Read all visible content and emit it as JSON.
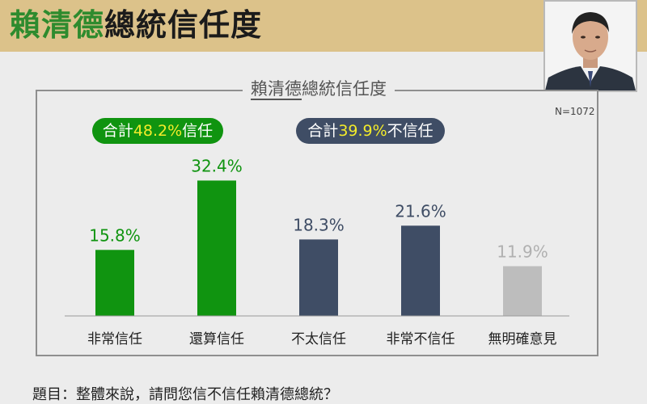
{
  "header": {
    "title_name": "賴清德",
    "title_rest": "總統信任度"
  },
  "chart_data": {
    "type": "bar",
    "title": "賴清德總統信任度",
    "title_underlined": "賴清德",
    "title_rest": "總統信任度",
    "sample_size": "N=1072",
    "categories": [
      "非常信任",
      "還算信任",
      "不太信任",
      "非常不信任",
      "無明確意見"
    ],
    "values": [
      15.8,
      32.4,
      18.3,
      21.6,
      11.9
    ],
    "value_labels": [
      "15.8%",
      "32.4%",
      "18.3%",
      "21.6%",
      "11.9%"
    ],
    "bar_colors": [
      "#109410",
      "#109410",
      "#3f4d65",
      "#3f4d65",
      "#bdbdbd"
    ],
    "label_colors": [
      "#109410",
      "#109410",
      "#3f4d65",
      "#3f4d65",
      "#b0b0b0"
    ],
    "ylim": [
      0,
      35
    ],
    "grid": false,
    "summary": {
      "trust": {
        "prefix": "合計",
        "value": "48.2%",
        "suffix": "信任",
        "color": "#109410"
      },
      "distrust": {
        "prefix": "合計",
        "value": "39.9%",
        "suffix": "不信任",
        "color": "#3f4d65"
      }
    }
  },
  "footnote": "題目：整體來說，請問您信不信任賴清德總統？",
  "colors": {
    "header_bg": "#dcc28a",
    "accent_green": "#109410",
    "accent_navy": "#3f4d65",
    "highlight_yellow": "#f4ec2a"
  }
}
